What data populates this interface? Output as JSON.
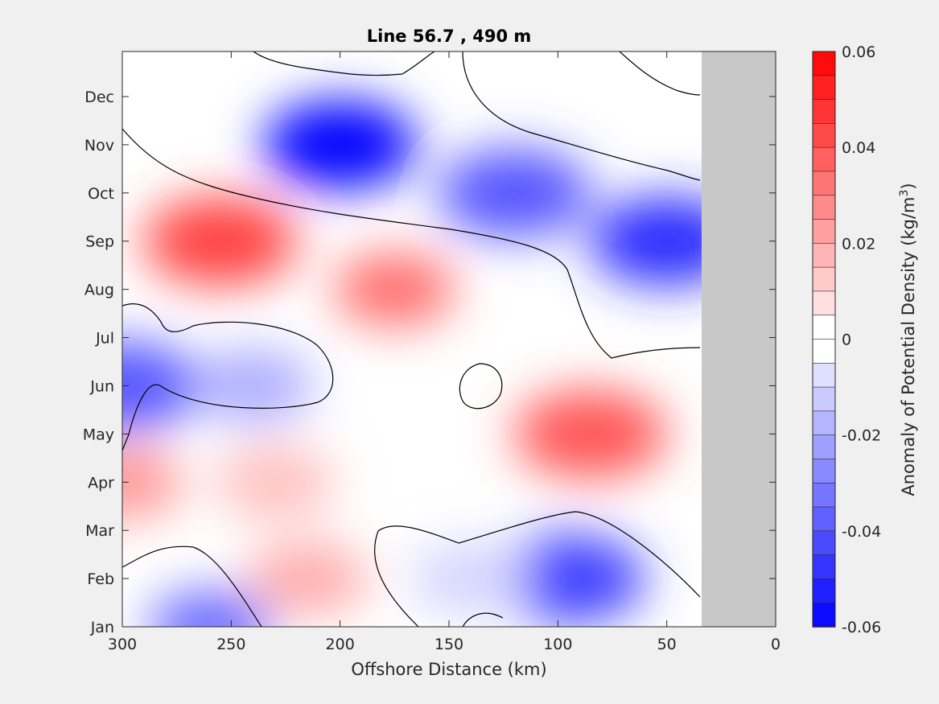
{
  "chart_data": {
    "type": "heatmap",
    "subtype": "filled-contour",
    "title": "Line 56.7 , 490 m",
    "xlabel": "Offshore Distance (km)",
    "ylabel": "",
    "x_ticks": [
      300,
      250,
      200,
      150,
      100,
      50,
      0
    ],
    "x_tick_labels": [
      "300",
      "250",
      "200",
      "150",
      "100",
      "50",
      "0"
    ],
    "xlim": [
      300,
      0
    ],
    "y_ticks": [
      "Jan",
      "Feb",
      "Mar",
      "Apr",
      "May",
      "Jun",
      "Jul",
      "Aug",
      "Sep",
      "Oct",
      "Nov",
      "Dec"
    ],
    "colorbar": {
      "label": "Anomaly of Potential Density",
      "unit_prefix": "(kg/m",
      "unit_exponent": "3",
      "unit_suffix": ")",
      "range": [
        -0.06,
        0.06
      ],
      "step": 0.005,
      "tick_values": [
        0.06,
        0.04,
        0.02,
        0,
        -0.02,
        -0.04,
        -0.06
      ],
      "tick_labels": [
        "0.06",
        "0.04",
        "0.02",
        "0",
        "-0.02",
        "-0.04",
        "-0.06"
      ]
    },
    "masked_region": {
      "x_from_km": 34,
      "x_to_km": 0,
      "color": "#c8c8c8"
    },
    "colors": {
      "positive": "#ff0000",
      "negative": "#0000ff",
      "neutral": "#ffffff"
    },
    "features": [
      {
        "name": "strong negative anomaly",
        "x_km": 200,
        "month": "Nov",
        "value": -0.06
      },
      {
        "name": "negative anomaly",
        "x_km": 120,
        "month": "Oct",
        "value": -0.04
      },
      {
        "name": "negative anomaly",
        "x_km": 50,
        "month": "Sep",
        "value": -0.05
      },
      {
        "name": "positive anomaly",
        "x_km": 255,
        "month": "Sep",
        "value": 0.045
      },
      {
        "name": "positive anomaly",
        "x_km": 175,
        "month": "Aug",
        "value": 0.035
      },
      {
        "name": "weak negative anomaly",
        "x_km": 240,
        "month": "Jun",
        "value": -0.02
      },
      {
        "name": "negative anomaly",
        "x_km": 300,
        "month": "Jun",
        "value": -0.04
      },
      {
        "name": "positive anomaly",
        "x_km": 85,
        "month": "May",
        "value": 0.04
      },
      {
        "name": "positive anomaly",
        "x_km": 300,
        "month": "Apr",
        "value": 0.025
      },
      {
        "name": "positive anomaly",
        "x_km": 230,
        "month": "Apr",
        "value": 0.015
      },
      {
        "name": "negative anomaly",
        "x_km": 95,
        "month": "Feb",
        "value": -0.045
      },
      {
        "name": "weak negative anomaly",
        "x_km": 140,
        "month": "Feb",
        "value": -0.01
      },
      {
        "name": "negative anomaly",
        "x_km": 260,
        "month": "Jan",
        "value": -0.035
      },
      {
        "name": "positive anomaly",
        "x_km": 215,
        "month": "Feb",
        "value": 0.02
      }
    ]
  }
}
